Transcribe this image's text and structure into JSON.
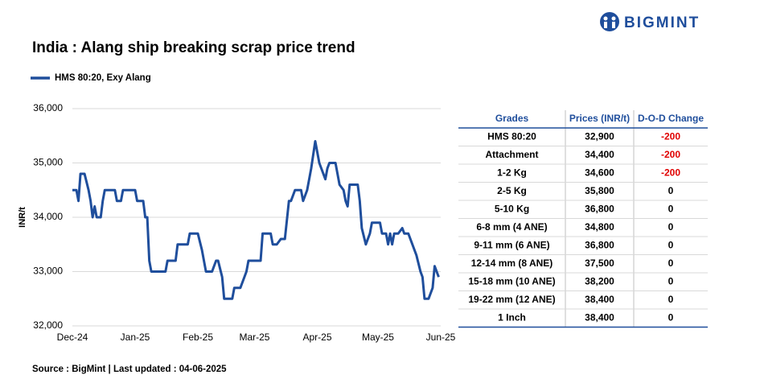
{
  "chart_data": {
    "type": "line",
    "title": "India : Alang ship breaking scrap price trend",
    "y_label": "INR/t",
    "x": [
      0,
      2,
      3,
      4,
      6,
      8,
      9,
      10,
      11,
      12,
      14,
      15,
      16,
      21,
      22,
      24,
      25,
      31,
      32,
      35,
      36,
      37,
      38,
      39,
      46,
      47,
      51,
      52,
      57,
      58,
      62,
      64,
      66,
      69,
      71,
      72,
      74,
      75,
      79,
      80,
      83,
      86,
      87,
      93,
      94,
      98,
      99,
      101,
      103,
      105,
      107,
      108,
      110,
      113,
      114,
      116,
      118,
      120,
      122,
      124,
      125,
      126,
      127,
      130,
      131,
      132,
      134,
      135,
      136,
      137,
      141,
      142,
      143,
      145,
      147,
      148,
      152,
      153,
      155,
      156,
      157,
      158,
      159,
      161,
      163,
      164,
      166,
      168,
      170,
      172,
      173,
      174,
      176,
      178,
      179,
      181
    ],
    "series": [
      {
        "name": "HMS 80:20, Exy Alang",
        "color": "#1f4e9c",
        "values": [
          34500,
          34500,
          34300,
          34800,
          34800,
          34500,
          34300,
          34000,
          34200,
          34000,
          34000,
          34300,
          34500,
          34500,
          34300,
          34300,
          34500,
          34500,
          34300,
          34300,
          34000,
          34000,
          33200,
          33000,
          33000,
          33200,
          33200,
          33500,
          33500,
          33700,
          33700,
          33400,
          33000,
          33000,
          33200,
          33200,
          32900,
          32500,
          32500,
          32700,
          32700,
          33000,
          33200,
          33200,
          33700,
          33700,
          33500,
          33500,
          33600,
          33600,
          34300,
          34300,
          34500,
          34500,
          34300,
          34500,
          34900,
          35400,
          35000,
          34800,
          34700,
          34900,
          35000,
          35000,
          34800,
          34600,
          34500,
          34300,
          34200,
          34600,
          34600,
          34300,
          33800,
          33500,
          33700,
          33900,
          33900,
          33700,
          33700,
          33500,
          33700,
          33500,
          33700,
          33700,
          33800,
          33700,
          33700,
          33500,
          33300,
          33000,
          32900,
          32500,
          32500,
          32700,
          33100,
          32900
        ]
      }
    ],
    "xlim": [
      0,
      182
    ],
    "xticks": [
      {
        "value": 0,
        "label": "Dec-24"
      },
      {
        "value": 31,
        "label": "Jan-25"
      },
      {
        "value": 62,
        "label": "Feb-25"
      },
      {
        "value": 90,
        "label": "Mar-25"
      },
      {
        "value": 121,
        "label": "Apr-25"
      },
      {
        "value": 151,
        "label": "May-25"
      },
      {
        "value": 182,
        "label": "Jun-25"
      }
    ],
    "ylim": [
      32000,
      36000
    ],
    "yticks": [
      {
        "value": 32000,
        "label": "32,000"
      },
      {
        "value": 33000,
        "label": "33,000"
      },
      {
        "value": 34000,
        "label": "34,000"
      },
      {
        "value": 35000,
        "label": "35,000"
      },
      {
        "value": 36000,
        "label": "36,000"
      }
    ],
    "grid": true
  },
  "table": {
    "columns": [
      "Grades",
      "Prices (INR/t)",
      "D-O-D Change"
    ],
    "rows": [
      [
        "HMS 80:20",
        "32,900",
        "-200"
      ],
      [
        "Attachment",
        "34,400",
        "-200"
      ],
      [
        "1-2 Kg",
        "34,600",
        "-200"
      ],
      [
        "2-5 Kg",
        "35,800",
        "0"
      ],
      [
        "5-10 Kg",
        "36,800",
        "0"
      ],
      [
        "6-8 mm (4 ANE)",
        "34,800",
        "0"
      ],
      [
        "9-11 mm (6 ANE)",
        "36,800",
        "0"
      ],
      [
        "12-14 mm (8 ANE)",
        "37,500",
        "0"
      ],
      [
        "15-18 mm (10 ANE)",
        "38,200",
        "0"
      ],
      [
        "19-22 mm (12 ANE)",
        "38,400",
        "0"
      ],
      [
        "1 Inch",
        "38,400",
        "0"
      ]
    ]
  },
  "source": "Source : BigMint | Last updated : 04-06-2025",
  "logo": "BIGMINT"
}
